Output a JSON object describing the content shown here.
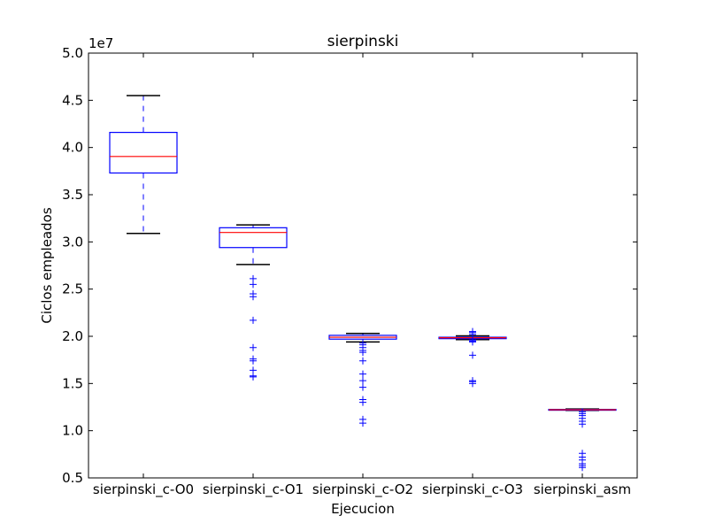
{
  "chart_data": {
    "type": "box",
    "title": "sierpinski",
    "xlabel": "Ejecucion",
    "ylabel": "Ciclos empleados",
    "y_multiplier": "1e7",
    "ylim": [
      0.5,
      5.0
    ],
    "yticks": [
      "0.5",
      "1.0",
      "1.5",
      "2.0",
      "2.5",
      "3.0",
      "3.5",
      "4.0",
      "4.5",
      "5.0"
    ],
    "categories": [
      "sierpinski_c-O0",
      "sierpinski_c-O1",
      "sierpinski_c-O2",
      "sierpinski_c-O3",
      "sierpinski_asm"
    ],
    "boxes": [
      {
        "whisker_low": 3.09,
        "q1": 3.73,
        "median": 3.905,
        "q3": 4.16,
        "whisker_high": 4.55,
        "outliers": []
      },
      {
        "whisker_low": 2.76,
        "q1": 2.94,
        "median": 3.1,
        "q3": 3.15,
        "whisker_high": 3.18,
        "outliers": [
          2.61,
          2.55,
          2.45,
          2.42,
          2.17,
          1.88,
          1.76,
          1.74,
          1.64,
          1.58,
          1.57
        ]
      },
      {
        "whisker_low": 1.94,
        "q1": 1.97,
        "median": 1.99,
        "q3": 2.01,
        "whisker_high": 2.03,
        "outliers": [
          1.93,
          1.91,
          1.88,
          1.85,
          1.83,
          1.74,
          1.6,
          1.53,
          1.46,
          1.33,
          1.3,
          1.12,
          1.08
        ]
      },
      {
        "whisker_low": 1.965,
        "q1": 1.975,
        "median": 1.985,
        "q3": 1.99,
        "whisker_high": 2.005,
        "outliers": [
          2.05,
          2.04,
          2.02,
          1.96,
          1.95,
          1.94,
          1.8,
          1.53,
          1.52,
          1.5
        ]
      },
      {
        "whisker_low": 1.215,
        "q1": 1.218,
        "median": 1.222,
        "q3": 1.226,
        "whisker_high": 1.23,
        "outliers": [
          1.2,
          1.18,
          1.16,
          1.13,
          1.1,
          1.07,
          0.76,
          0.72,
          0.69,
          0.65,
          0.63,
          0.61
        ]
      }
    ],
    "colors": {
      "box": "#0000ff",
      "median": "#ff0000",
      "cap": "#000000",
      "outlier": "#0000ff"
    },
    "grid": false
  }
}
